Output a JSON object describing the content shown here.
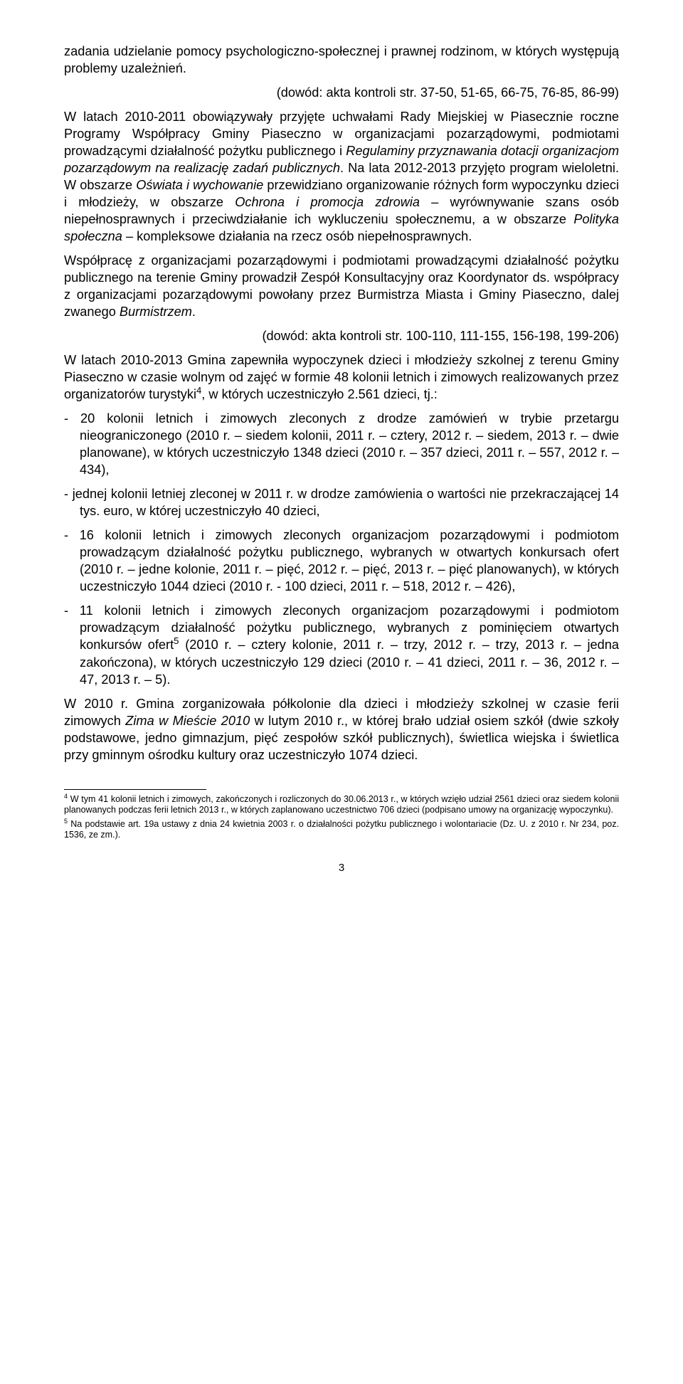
{
  "para1": "zadania udzielanie pomocy psychologiczno-społecznej i prawnej rodzinom, w których występują problemy uzależnień.",
  "dowod1": "(dowód: akta kontroli str. 37-50, 51-65, 66-75, 76-85, 86-99)",
  "para2a": "W latach 2010-2011 obowiązywały przyjęte uchwałami Rady Miejskiej w Piasecznie roczne Programy Współpracy Gminy Piaseczno w organizacjami pozarządowymi, podmiotami prowadzącymi działalność pożytku publicznego i ",
  "para2b": "Regulaminy przyznawania dotacji organizacjom pozarządowym na realizację zadań publicznych",
  "para2c": ". Na lata 2012-2013 przyjęto program wieloletni. W obszarze ",
  "para2d": "Oświata i wychowanie",
  "para2e": " przewidziano organizowanie różnych form wypoczynku dzieci i młodzieży, w obszarze ",
  "para2f": "Ochrona i promocja zdrowia",
  "para2g": " – wyrównywanie szans osób niepełnosprawnych i przeciwdziałanie ich wykluczeniu społecznemu, a w obszarze ",
  "para2h": "Polityka społeczna",
  "para2i": " –  kompleksowe działania na rzecz osób niepełnosprawnych.",
  "para3a": "Współpracę z organizacjami pozarządowymi i podmiotami prowadzącymi działalność pożytku publicznego na terenie Gminy prowadził Zespół Konsultacyjny oraz Koordynator ds. współpracy z organizacjami pozarządowymi powołany przez Burmistrza Miasta i Gminy Piaseczno, dalej zwanego ",
  "para3b": "Burmistrzem",
  "para3c": ".",
  "dowod2": "(dowód: akta kontroli str. 100-110, 111-155, 156-198, 199-206)",
  "para4a": "W latach 2010-2013 Gmina zapewniła wypoczynek dzieci i młodzieży szkolnej z terenu Gminy Piaseczno w czasie wolnym od zajęć w formie 48 kolonii letnich i zimowych realizowanych przez organizatorów turystyki",
  "para4b": ", w których uczestniczyło 2.561 dzieci, tj.:",
  "li1": "20 kolonii letnich i zimowych zleconych z drodze zamówień w trybie przetargu nieograniczonego (2010 r. – siedem kolonii, 2011 r. – cztery, 2012 r. – siedem, 2013 r. – dwie planowane), w których uczestniczyło 1348 dzieci (2010 r. – 357 dzieci, 2011 r. – 557, 2012 r. – 434),",
  "li2": "jednej kolonii letniej zleconej w 2011 r. w drodze zamówienia o wartości nie przekraczającej 14 tys. euro, w której uczestniczyło 40 dzieci,",
  "li3": "16 kolonii letnich i zimowych zleconych organizacjom pozarządowymi i podmiotom prowadzącym działalność pożytku publicznego, wybranych w otwartych konkursach ofert (2010 r. – jedne kolonie, 2011 r. – pięć, 2012 r. – pięć, 2013 r. – pięć planowanych), w których uczestniczyło 1044 dzieci (2010 r. - 100 dzieci, 2011 r. – 518, 2012 r. – 426),",
  "li4a": "11 kolonii letnich i zimowych zleconych organizacjom pozarządowymi i podmiotom prowadzącym działalność pożytku publicznego, wybranych z pominięciem otwartych konkursów ofert",
  "li4b": " (2010 r. – cztery kolonie, 2011 r. – trzy, 2012 r. – trzy, 2013 r. – jedna zakończona), w których uczestniczyło 129 dzieci (2010 r. –  41 dzieci, 2011 r. – 36, 2012 r. – 47, 2013 r. – 5).",
  "para5a": "W 2010 r. Gmina zorganizowała półkolonie dla dzieci i młodzieży szkolnej w czasie ferii zimowych ",
  "para5b": "Zima w Mieście 2010",
  "para5c": " w lutym 2010 r., w której brało udział osiem szkół (dwie szkoły podstawowe, jedno gimnazjum, pięć zespołów szkół publicznych), świetlica wiejska i świetlica przy gminnym ośrodku kultury oraz uczestniczyło 1074 dzieci.",
  "fn4a": " W tym 41 kolonii letnich i zimowych, zakończonych i rozliczonych do 30.06.2013 r., w których wzięło udział 2561 dzieci oraz siedem kolonii planowanych podczas ferii letnich 2013 r., w których zaplanowano uczestnictwo 706 dzieci (podpisano umowy na organizację wypoczynku).",
  "fn5a": " Na podstawie art. 19a ustawy z dnia 24 kwietnia 2003 r. o działalności pożytku publicznego i wolontariacie (Dz. U. z 2010 r. Nr 234, poz. 1536, ze zm.).",
  "pageNumber": "3",
  "sup4": "4",
  "sup5": "5"
}
